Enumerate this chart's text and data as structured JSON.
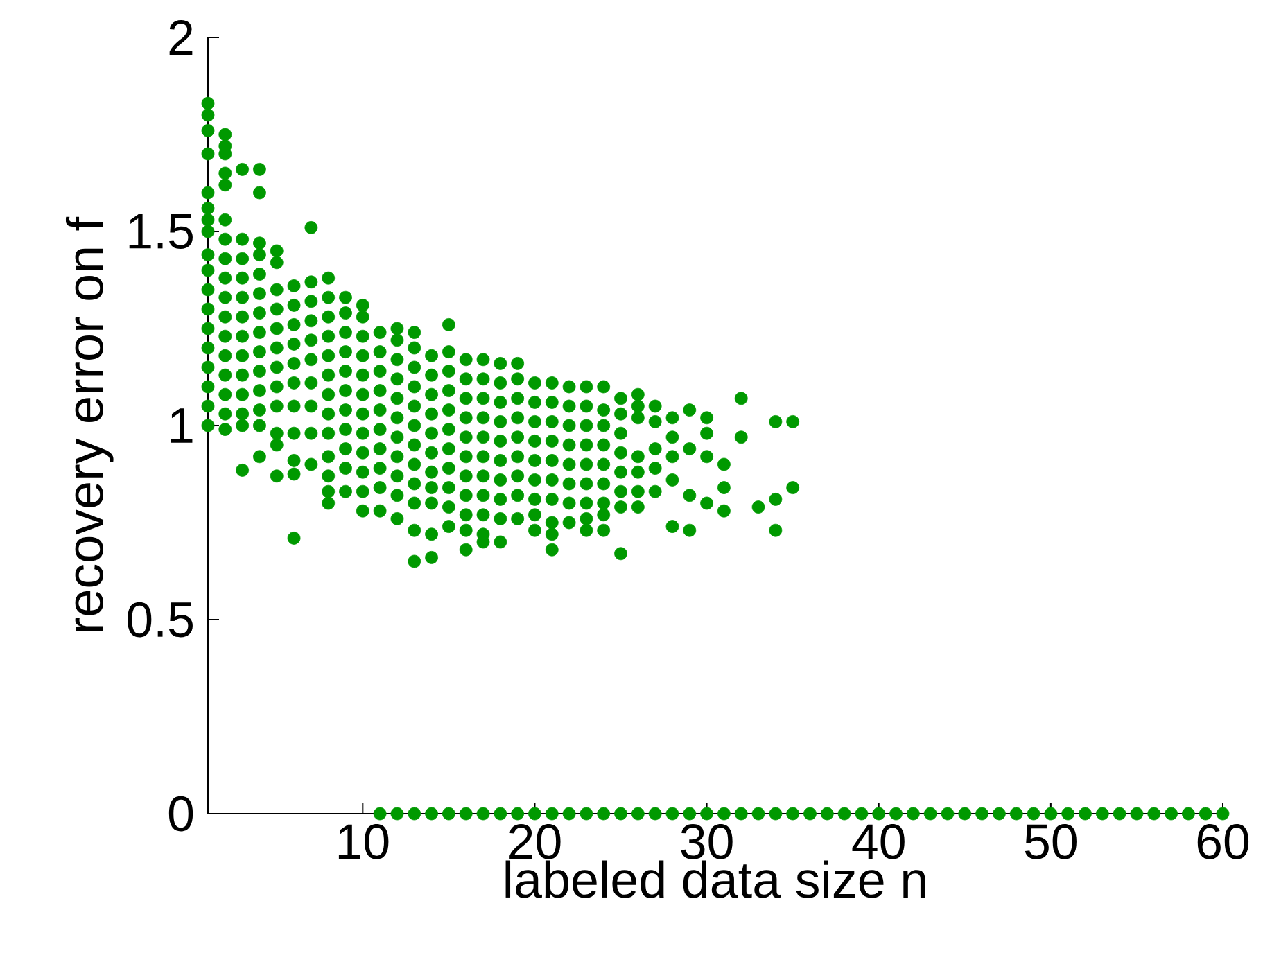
{
  "chart_data": {
    "type": "scatter",
    "xlabel": "labeled data size n",
    "ylabel": "recovery error on f",
    "color": "#009900",
    "marker": "circle",
    "xlim": [
      1,
      60
    ],
    "ylim": [
      0,
      2
    ],
    "xticks": [
      10,
      20,
      30,
      40,
      50,
      60
    ],
    "yticks": [
      0,
      0.5,
      1,
      1.5,
      2
    ],
    "x": [
      1,
      1,
      1,
      1,
      1,
      1,
      1,
      1,
      1,
      1,
      1,
      1,
      1,
      1,
      1,
      1,
      1,
      1,
      2,
      2,
      2,
      2,
      2,
      2,
      2,
      2,
      2,
      2,
      2,
      2,
      2,
      2,
      2,
      2,
      2,
      3,
      3,
      3,
      3,
      3,
      3,
      3,
      3,
      3,
      3,
      3,
      3,
      3,
      4,
      4,
      4,
      4,
      4,
      4,
      4,
      4,
      4,
      4,
      4,
      4,
      4,
      4,
      5,
      5,
      5,
      5,
      5,
      5,
      5,
      5,
      5,
      5,
      5,
      5,
      6,
      6,
      6,
      6,
      6,
      6,
      6,
      6,
      6,
      6,
      6,
      7,
      7,
      7,
      7,
      7,
      7,
      7,
      7,
      7,
      7,
      8,
      8,
      8,
      8,
      8,
      8,
      8,
      8,
      8,
      8,
      8,
      8,
      8,
      9,
      9,
      9,
      9,
      9,
      9,
      9,
      9,
      9,
      9,
      9,
      10,
      10,
      10,
      10,
      10,
      10,
      10,
      10,
      10,
      10,
      10,
      10,
      11,
      11,
      11,
      11,
      11,
      11,
      11,
      11,
      11,
      11,
      12,
      12,
      12,
      12,
      12,
      12,
      12,
      12,
      12,
      12,
      12,
      13,
      13,
      13,
      13,
      13,
      13,
      13,
      13,
      13,
      13,
      13,
      13,
      14,
      14,
      14,
      14,
      14,
      14,
      14,
      14,
      14,
      14,
      14,
      15,
      15,
      15,
      15,
      15,
      15,
      15,
      15,
      15,
      15,
      15,
      16,
      16,
      16,
      16,
      16,
      16,
      16,
      16,
      16,
      16,
      16,
      17,
      17,
      17,
      17,
      17,
      17,
      17,
      17,
      17,
      17,
      17,
      18,
      18,
      18,
      18,
      18,
      18,
      18,
      18,
      18,
      18,
      19,
      19,
      19,
      19,
      19,
      19,
      19,
      19,
      19,
      20,
      20,
      20,
      20,
      20,
      20,
      20,
      20,
      20,
      21,
      21,
      21,
      21,
      21,
      21,
      21,
      21,
      21,
      21,
      22,
      22,
      22,
      22,
      22,
      22,
      22,
      22,
      23,
      23,
      23,
      23,
      23,
      23,
      23,
      23,
      23,
      24,
      24,
      24,
      24,
      24,
      24,
      24,
      24,
      24,
      25,
      25,
      25,
      25,
      25,
      25,
      25,
      25,
      26,
      26,
      26,
      26,
      26,
      26,
      26,
      27,
      27,
      27,
      27,
      27,
      28,
      28,
      28,
      28,
      28,
      29,
      29,
      29,
      29,
      30,
      30,
      30,
      30,
      31,
      31,
      31,
      32,
      32,
      33,
      34,
      34,
      34,
      35,
      35,
      11,
      12,
      13,
      14,
      15,
      16,
      17,
      18,
      19,
      20,
      21,
      22,
      23,
      24,
      25,
      26,
      27,
      28,
      29,
      30,
      31,
      32,
      33,
      34,
      35,
      36,
      37,
      38,
      39,
      40,
      41,
      42,
      43,
      44,
      45,
      46,
      47,
      48,
      49,
      50,
      51,
      52,
      53,
      54,
      55,
      56,
      57,
      58,
      59,
      60
    ],
    "values": [
      1.83,
      1.8,
      1.76,
      1.7,
      1.6,
      1.56,
      1.53,
      1.5,
      1.44,
      1.4,
      1.35,
      1.3,
      1.25,
      1.2,
      1.15,
      1.1,
      1.05,
      1.0,
      1.75,
      1.72,
      1.7,
      1.65,
      1.62,
      1.53,
      1.48,
      1.43,
      1.38,
      1.33,
      1.28,
      1.23,
      1.18,
      1.13,
      1.08,
      1.03,
      0.99,
      1.66,
      1.48,
      1.43,
      1.38,
      1.33,
      1.28,
      1.23,
      1.18,
      1.13,
      1.08,
      1.03,
      1.0,
      0.885,
      1.66,
      1.6,
      1.47,
      1.44,
      1.39,
      1.34,
      1.29,
      1.24,
      1.19,
      1.14,
      1.09,
      1.04,
      1.0,
      0.92,
      1.45,
      1.42,
      1.35,
      1.3,
      1.25,
      1.2,
      1.15,
      1.1,
      1.05,
      0.98,
      0.95,
      0.87,
      1.36,
      1.31,
      1.26,
      1.21,
      1.16,
      1.11,
      1.05,
      0.98,
      0.91,
      0.875,
      0.71,
      1.51,
      1.37,
      1.32,
      1.27,
      1.22,
      1.17,
      1.11,
      1.05,
      0.98,
      0.9,
      1.38,
      1.33,
      1.28,
      1.23,
      1.18,
      1.13,
      1.08,
      1.03,
      0.98,
      0.92,
      0.87,
      0.83,
      0.8,
      1.33,
      1.29,
      1.24,
      1.19,
      1.14,
      1.09,
      1.04,
      0.99,
      0.94,
      0.89,
      0.83,
      1.31,
      1.28,
      1.23,
      1.18,
      1.13,
      1.08,
      1.03,
      0.98,
      0.93,
      0.88,
      0.83,
      0.78,
      1.24,
      1.19,
      1.14,
      1.09,
      1.04,
      0.99,
      0.94,
      0.89,
      0.84,
      0.78,
      1.25,
      1.22,
      1.17,
      1.12,
      1.07,
      1.02,
      0.97,
      0.92,
      0.87,
      0.82,
      0.76,
      1.24,
      1.2,
      1.15,
      1.1,
      1.05,
      1.0,
      0.95,
      0.9,
      0.85,
      0.8,
      0.73,
      0.65,
      1.18,
      1.13,
      1.08,
      1.03,
      0.98,
      0.93,
      0.88,
      0.84,
      0.8,
      0.72,
      0.66,
      1.26,
      1.19,
      1.14,
      1.09,
      1.04,
      0.99,
      0.94,
      0.89,
      0.84,
      0.79,
      0.74,
      1.17,
      1.12,
      1.07,
      1.02,
      0.97,
      0.92,
      0.87,
      0.82,
      0.77,
      0.73,
      0.68,
      1.17,
      1.12,
      1.07,
      1.02,
      0.97,
      0.92,
      0.87,
      0.82,
      0.77,
      0.72,
      0.7,
      1.16,
      1.11,
      1.06,
      1.01,
      0.96,
      0.91,
      0.86,
      0.81,
      0.76,
      0.7,
      1.16,
      1.12,
      1.07,
      1.02,
      0.97,
      0.92,
      0.87,
      0.82,
      0.76,
      1.11,
      1.06,
      1.01,
      0.96,
      0.91,
      0.86,
      0.81,
      0.77,
      0.73,
      1.11,
      1.06,
      1.01,
      0.96,
      0.91,
      0.86,
      0.81,
      0.75,
      0.72,
      0.68,
      1.1,
      1.05,
      1.0,
      0.95,
      0.9,
      0.85,
      0.8,
      0.75,
      1.1,
      1.05,
      1.0,
      0.95,
      0.9,
      0.85,
      0.8,
      0.76,
      0.73,
      1.1,
      1.04,
      1.0,
      0.95,
      0.9,
      0.85,
      0.8,
      0.77,
      0.73,
      1.07,
      1.03,
      0.98,
      0.93,
      0.88,
      0.83,
      0.79,
      0.67,
      1.08,
      1.05,
      1.02,
      0.92,
      0.88,
      0.83,
      0.79,
      1.05,
      1.01,
      0.94,
      0.89,
      0.83,
      1.02,
      0.97,
      0.92,
      0.86,
      0.74,
      1.04,
      0.94,
      0.82,
      0.73,
      1.02,
      0.98,
      0.92,
      0.8,
      0.9,
      0.84,
      0.78,
      1.07,
      0.97,
      0.79,
      1.01,
      0.81,
      0.73,
      1.01,
      0.84,
      0,
      0,
      0,
      0,
      0,
      0,
      0,
      0,
      0,
      0,
      0,
      0,
      0,
      0,
      0,
      0,
      0,
      0,
      0,
      0,
      0,
      0,
      0,
      0,
      0,
      0,
      0,
      0,
      0,
      0,
      0,
      0,
      0,
      0,
      0,
      0,
      0,
      0,
      0,
      0,
      0,
      0,
      0,
      0,
      0,
      0,
      0,
      0,
      0,
      0
    ]
  }
}
